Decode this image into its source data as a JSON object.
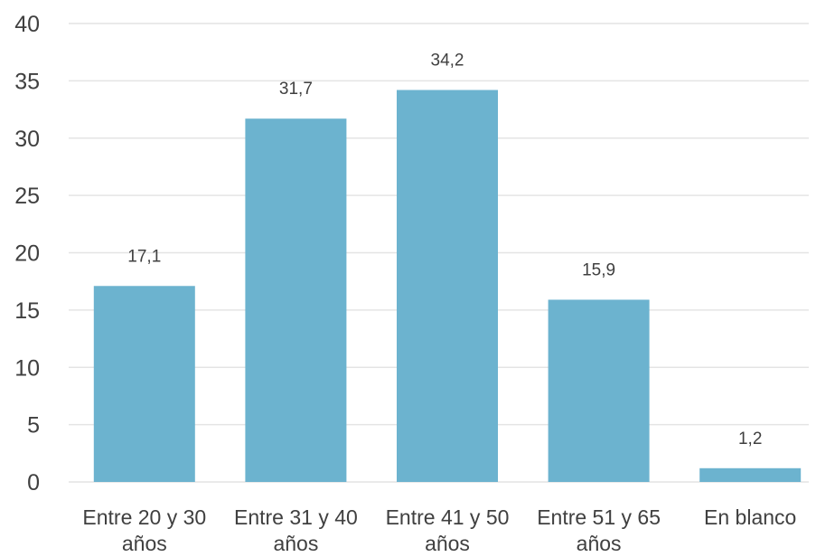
{
  "chart_data": {
    "type": "bar",
    "categories": [
      [
        "Entre 20 y 30",
        "años"
      ],
      [
        "Entre 31 y 40",
        "años"
      ],
      [
        "Entre 41 y 50",
        "años"
      ],
      [
        "Entre 51 y 65",
        "años"
      ],
      [
        "En blanco"
      ]
    ],
    "values": [
      17.1,
      31.7,
      34.2,
      15.9,
      1.2
    ],
    "data_labels": [
      "17,1",
      "31,7",
      "34,2",
      "15,9",
      "1,2"
    ],
    "title": "",
    "xlabel": "",
    "ylabel": "",
    "ylim": [
      0,
      40
    ],
    "yticks": [
      0,
      5,
      10,
      15,
      20,
      25,
      30,
      35,
      40
    ],
    "grid": true,
    "legend": "none",
    "bar_color": "#6cb3cf",
    "grid_color": "#e4e4e4",
    "text_color": "#404040"
  }
}
